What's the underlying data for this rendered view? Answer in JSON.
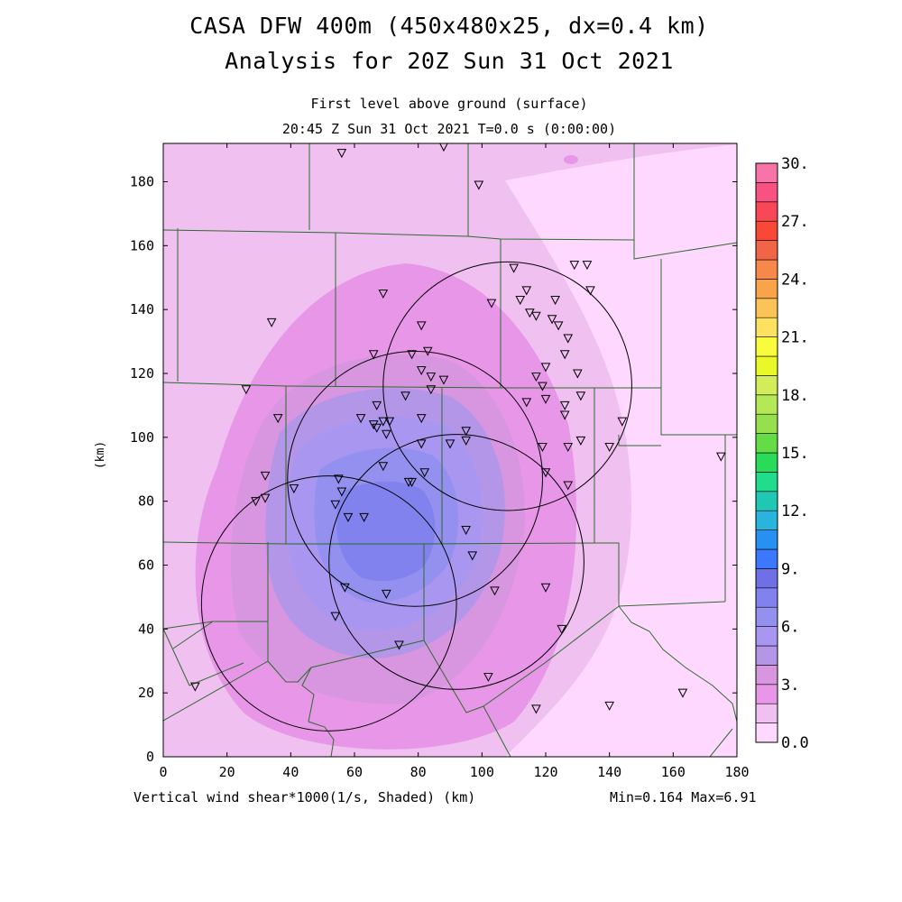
{
  "header": {
    "title_line1": "CASA DFW 400m (450x480x25, dx=0.4 km)",
    "title_line2": "Analysis for 20Z Sun 31 Oct 2021",
    "subtitle_line1": "First level above ground (surface)",
    "subtitle_line2": "20:45 Z Sun 31 Oct 2021   T=0.0 s (0:00:00)"
  },
  "footer": {
    "variable_label": "Vertical wind shear*1000(1/s, Shaded)  (km)",
    "min_max": "Min=0.164 Max=6.91"
  },
  "chart_data": {
    "type": "heatmap",
    "title": "CASA DFW 400m (450x480x25, dx=0.4 km)",
    "xlabel": "(km)",
    "ylabel": "(km)",
    "xlim": [
      0,
      180
    ],
    "ylim": [
      0,
      192
    ],
    "x_ticks": [
      0,
      20,
      40,
      60,
      80,
      100,
      120,
      140,
      160,
      180
    ],
    "y_ticks": [
      0,
      20,
      40,
      60,
      80,
      100,
      120,
      140,
      160,
      180
    ],
    "x_tick_labels": [
      "0",
      "20",
      "40",
      "60",
      "80",
      "100",
      "120",
      "140",
      "160",
      "180"
    ],
    "y_tick_labels": [
      "0",
      "20",
      "40",
      "60",
      "80",
      "100",
      "120",
      "140",
      "160",
      "180"
    ],
    "variable": "Vertical wind shear*1000 (1/s)",
    "min": 0.164,
    "max": 6.91,
    "colorbar": {
      "levels": [
        0,
        1,
        2,
        3,
        4,
        5,
        6,
        7,
        8,
        9,
        10,
        11,
        12,
        13,
        14,
        15,
        16,
        17,
        18,
        19,
        20,
        21,
        22,
        23,
        24,
        25,
        26,
        27,
        28,
        29,
        30
      ],
      "labels": [
        "0.0",
        "3.",
        "6.",
        "9.",
        "12.",
        "15.",
        "18.",
        "21.",
        "24.",
        "27.",
        "30."
      ],
      "label_values": [
        0,
        3,
        6,
        9,
        12,
        15,
        18,
        21,
        24,
        27,
        30
      ],
      "colors": [
        "#ffd8ff",
        "#f0c0f0",
        "#e896e8",
        "#d896e0",
        "#b496e8",
        "#a896f0",
        "#9490f0",
        "#8282ee",
        "#7070e6",
        "#3c78ff",
        "#2890f0",
        "#28b4dc",
        "#20c8b4",
        "#20dc8c",
        "#28dc5a",
        "#64dc46",
        "#96e050",
        "#b4e856",
        "#d2ec5a",
        "#e8f828",
        "#f8fc3c",
        "#fce25e",
        "#fcc458",
        "#f8a44a",
        "#f8884a",
        "#f06448",
        "#f84838",
        "#f84858",
        "#f85282",
        "#f874a8",
        "#f88cd2"
      ]
    },
    "radars": [
      {
        "x": 108,
        "y": 116,
        "radius_km": 39
      },
      {
        "x": 79,
        "y": 87,
        "radius_km": 40
      },
      {
        "x": 52,
        "y": 48,
        "radius_km": 40
      },
      {
        "x": 92,
        "y": 61,
        "radius_km": 40
      }
    ],
    "stations": [
      [
        56,
        189
      ],
      [
        88,
        191
      ],
      [
        99,
        179
      ],
      [
        110,
        153
      ],
      [
        114,
        146
      ],
      [
        117,
        138
      ],
      [
        115,
        139
      ],
      [
        122,
        137
      ],
      [
        124,
        135
      ],
      [
        123,
        143
      ],
      [
        129,
        154
      ],
      [
        133,
        154
      ],
      [
        134,
        146
      ],
      [
        103,
        142
      ],
      [
        112,
        143
      ],
      [
        127,
        131
      ],
      [
        126,
        126
      ],
      [
        130,
        120
      ],
      [
        120,
        122
      ],
      [
        117,
        119
      ],
      [
        119,
        116
      ],
      [
        114,
        111
      ],
      [
        120,
        112
      ],
      [
        126,
        110
      ],
      [
        126,
        107
      ],
      [
        131,
        113
      ],
      [
        144,
        105
      ],
      [
        140,
        97
      ],
      [
        175,
        94
      ],
      [
        119,
        97
      ],
      [
        127,
        97
      ],
      [
        131,
        99
      ],
      [
        120,
        89
      ],
      [
        127,
        85
      ],
      [
        69,
        145
      ],
      [
        34,
        136
      ],
      [
        81,
        135
      ],
      [
        78,
        126
      ],
      [
        83,
        127
      ],
      [
        66,
        126
      ],
      [
        81,
        121
      ],
      [
        84,
        119
      ],
      [
        88,
        118
      ],
      [
        84,
        115
      ],
      [
        76,
        113
      ],
      [
        26,
        115
      ],
      [
        36,
        106
      ],
      [
        67,
        110
      ],
      [
        62,
        106
      ],
      [
        69,
        105
      ],
      [
        71,
        105
      ],
      [
        66,
        104
      ],
      [
        67,
        103
      ],
      [
        70,
        101
      ],
      [
        81,
        106
      ],
      [
        95,
        102
      ],
      [
        95,
        99
      ],
      [
        90,
        98
      ],
      [
        81,
        98
      ],
      [
        32,
        88
      ],
      [
        29,
        80
      ],
      [
        32,
        81
      ],
      [
        41,
        84
      ],
      [
        55,
        87
      ],
      [
        56,
        83
      ],
      [
        69,
        91
      ],
      [
        78,
        86
      ],
      [
        82,
        89
      ],
      [
        77,
        86
      ],
      [
        54,
        79
      ],
      [
        58,
        75
      ],
      [
        63,
        75
      ],
      [
        95,
        71
      ],
      [
        97,
        63
      ],
      [
        57,
        53
      ],
      [
        70,
        51
      ],
      [
        104,
        52
      ],
      [
        120,
        53
      ],
      [
        54,
        44
      ],
      [
        74,
        35
      ],
      [
        125,
        40
      ],
      [
        102,
        25
      ],
      [
        10,
        22
      ],
      [
        117,
        15
      ],
      [
        140,
        16
      ],
      [
        163,
        20
      ]
    ]
  }
}
